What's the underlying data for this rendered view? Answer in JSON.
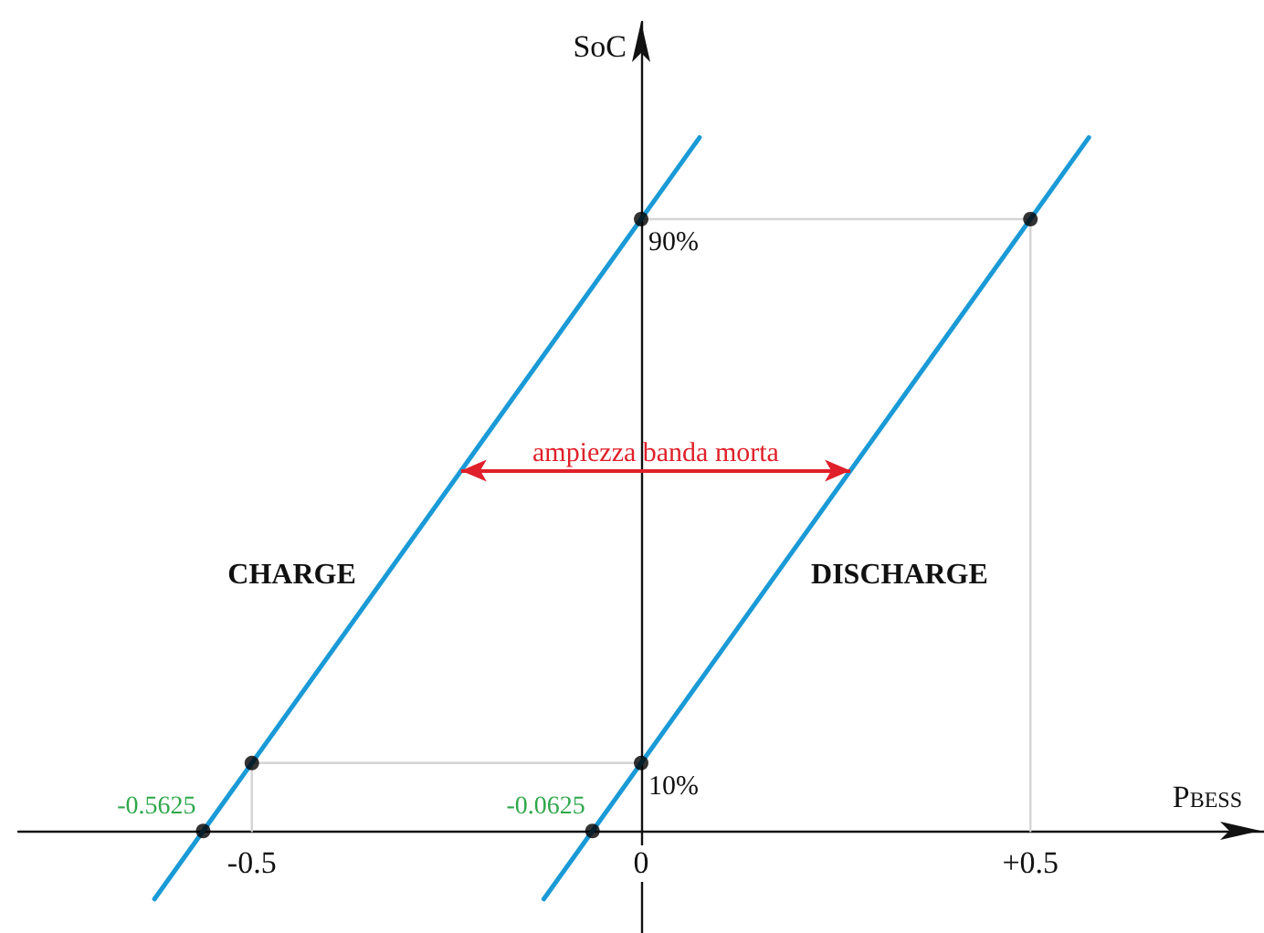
{
  "chart_data": {
    "type": "line",
    "xlabel": "P$_{BESS}$",
    "ylabel": "SoC",
    "xlim": [
      -0.8,
      0.8
    ],
    "ylim": [
      -15,
      119
    ],
    "xticks": [
      {
        "value": -0.5,
        "label": "-0.5"
      },
      0,
      {
        "value": 0.5,
        "label": "+0.5"
      }
    ],
    "yticks": [
      {
        "value": 10,
        "label": "10%"
      },
      {
        "value": 90,
        "label": "90%"
      }
    ],
    "grid": false,
    "legend": false,
    "marker": "none",
    "line_style": "solid",
    "series": [
      {
        "name": "CHARGE",
        "color": "#1a9ad6",
        "x": [
          -0.625,
          0.075
        ],
        "values": [
          -10,
          102
        ]
      },
      {
        "name": "DISCHARGE",
        "color": "#1a9ad6",
        "x": [
          -0.125,
          0.575
        ],
        "values": [
          -10,
          102
        ]
      },
      {
        "color": "#d4d4d4",
        "x": [
          -0.5,
          -0.5,
          0
        ],
        "values": [
          0,
          10,
          10
        ]
      },
      {
        "color": "#d4d4d4",
        "x": [
          0,
          0.5,
          0.5
        ],
        "values": [
          90,
          90,
          0
        ]
      },
      {
        "type": "scatter",
        "color": "#000000",
        "marker": "circle",
        "x": [
          -0.5625,
          -0.0625,
          -0.5,
          0,
          0,
          0.5
        ],
        "values": [
          0,
          0,
          10,
          10,
          90,
          90
        ]
      }
    ],
    "annotations": [
      {
        "text": "ampiezza banda morta",
        "x": -0.231,
        "y": 53
      },
      {
        "text": "-0.5625",
        "x": -0.5625,
        "y": 0
      },
      {
        "text": "-0.0625",
        "x": -0.0625,
        "y": 0
      }
    ]
  }
}
